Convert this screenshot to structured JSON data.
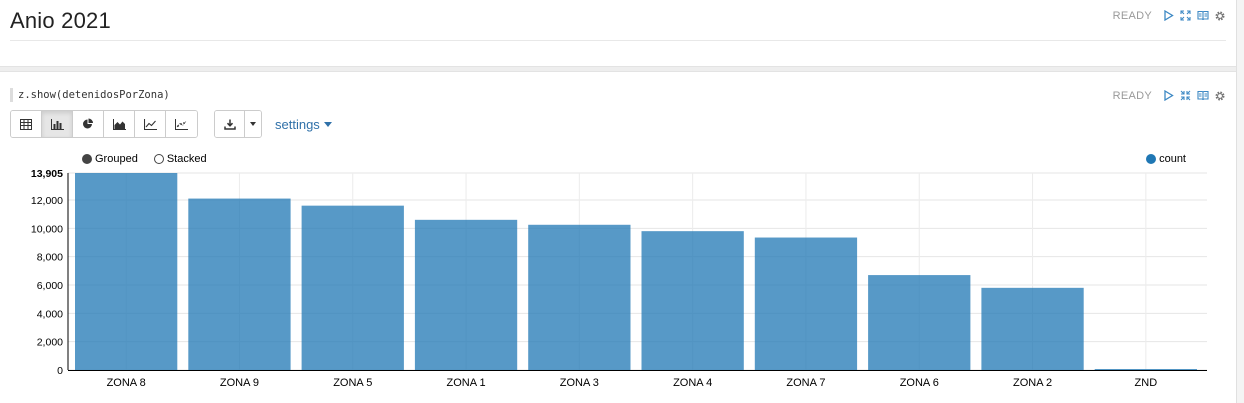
{
  "paragraph1": {
    "title": "Anio 2021",
    "status": "READY",
    "icons": [
      "run-icon",
      "expand-icon",
      "book-icon",
      "gear-icon"
    ]
  },
  "paragraph2": {
    "code": "z.show(detenidosPorZona)",
    "status": "READY",
    "icons": [
      "run-icon",
      "collapse-icon",
      "book-icon",
      "gear-icon"
    ],
    "toolbar": {
      "views": [
        "table-icon",
        "bar-chart-icon",
        "pie-chart-icon",
        "area-chart-icon",
        "line-chart-icon",
        "scatter-chart-icon"
      ],
      "active_view": "bar-chart-icon",
      "download_icon": "download-icon",
      "settings_label": "settings"
    },
    "legend": {
      "grouped_label": "Grouped",
      "stacked_label": "Stacked",
      "selected_mode": "Grouped"
    }
  },
  "chart_data": {
    "type": "bar",
    "categories": [
      "ZONA 8",
      "ZONA 9",
      "ZONA 5",
      "ZONA 1",
      "ZONA 3",
      "ZONA 4",
      "ZONA 7",
      "ZONA 6",
      "ZONA 2",
      "ZND"
    ],
    "series": [
      {
        "name": "count",
        "color": "#1f77b4",
        "values": [
          13905,
          12100,
          11600,
          10600,
          10250,
          9800,
          9350,
          6700,
          5800,
          40
        ]
      }
    ],
    "yticks": [
      0,
      2000,
      4000,
      6000,
      8000,
      10000,
      12000
    ],
    "ymax_label": "13,905",
    "ylim": [
      0,
      13905
    ],
    "grid": true,
    "legend_placement": "top-right"
  }
}
